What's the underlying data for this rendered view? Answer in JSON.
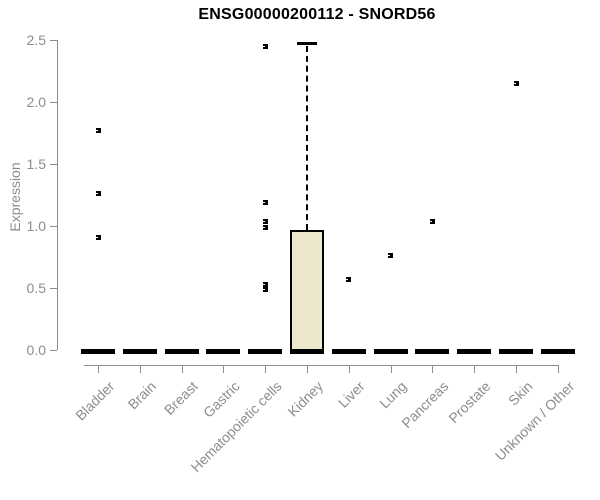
{
  "chart_data": {
    "type": "box",
    "title": "ENSG00000200112 - SNORD56",
    "ylabel": "Expression",
    "xlabel": "",
    "ylim": [
      0,
      2.5
    ],
    "yticks": [
      "0.0",
      "0.5",
      "1.0",
      "1.5",
      "2.0",
      "2.5"
    ],
    "grid": false,
    "legend": null,
    "categories": [
      "Bladder",
      "Brain",
      "Breast",
      "Gastric",
      "Hematopoietic cells",
      "Kidney",
      "Liver",
      "Lung",
      "Pancreas",
      "Prostate",
      "Skin",
      "Unknown / Other"
    ],
    "series": [
      {
        "name": "Bladder",
        "q1": 0,
        "median": 0,
        "q3": 0,
        "whisker_low": 0,
        "whisker_high": 0,
        "outliers": [
          1.77,
          1.26,
          0.91
        ]
      },
      {
        "name": "Brain",
        "q1": 0,
        "median": 0,
        "q3": 0,
        "whisker_low": 0,
        "whisker_high": 0,
        "outliers": []
      },
      {
        "name": "Breast",
        "q1": 0,
        "median": 0,
        "q3": 0,
        "whisker_low": 0,
        "whisker_high": 0,
        "outliers": []
      },
      {
        "name": "Gastric",
        "q1": 0,
        "median": 0,
        "q3": 0,
        "whisker_low": 0,
        "whisker_high": 0,
        "outliers": []
      },
      {
        "name": "Hematopoietic cells",
        "q1": 0,
        "median": 0,
        "q3": 0,
        "whisker_low": 0,
        "whisker_high": 0,
        "outliers": [
          2.45,
          1.19,
          1.04,
          0.99,
          0.53,
          0.49
        ]
      },
      {
        "name": "Kidney",
        "q1": 0,
        "median": 0,
        "q3": 0.97,
        "whisker_low": 0,
        "whisker_high": 2.47,
        "outliers": []
      },
      {
        "name": "Liver",
        "q1": 0,
        "median": 0,
        "q3": 0,
        "whisker_low": 0,
        "whisker_high": 0,
        "outliers": [
          0.57
        ]
      },
      {
        "name": "Lung",
        "q1": 0,
        "median": 0,
        "q3": 0,
        "whisker_low": 0,
        "whisker_high": 0,
        "outliers": [
          0.76
        ]
      },
      {
        "name": "Pancreas",
        "q1": 0,
        "median": 0,
        "q3": 0,
        "whisker_low": 0,
        "whisker_high": 0,
        "outliers": [
          1.04
        ]
      },
      {
        "name": "Prostate",
        "q1": 0,
        "median": 0,
        "q3": 0,
        "whisker_low": 0,
        "whisker_high": 0,
        "outliers": []
      },
      {
        "name": "Skin",
        "q1": 0,
        "median": 0,
        "q3": 0,
        "whisker_low": 0,
        "whisker_high": 0,
        "outliers": [
          2.15
        ]
      },
      {
        "name": "Unknown / Other",
        "q1": 0,
        "median": 0,
        "q3": 0,
        "whisker_low": 0,
        "whisker_high": 0,
        "outliers": []
      }
    ],
    "colors": {
      "box_fill": "#ede8cd",
      "box_border": "#000000",
      "whisker": "#000000",
      "outlier": "#000000",
      "axis": "#8d8d8d",
      "title": "#000000",
      "background": "#ffffff"
    }
  }
}
